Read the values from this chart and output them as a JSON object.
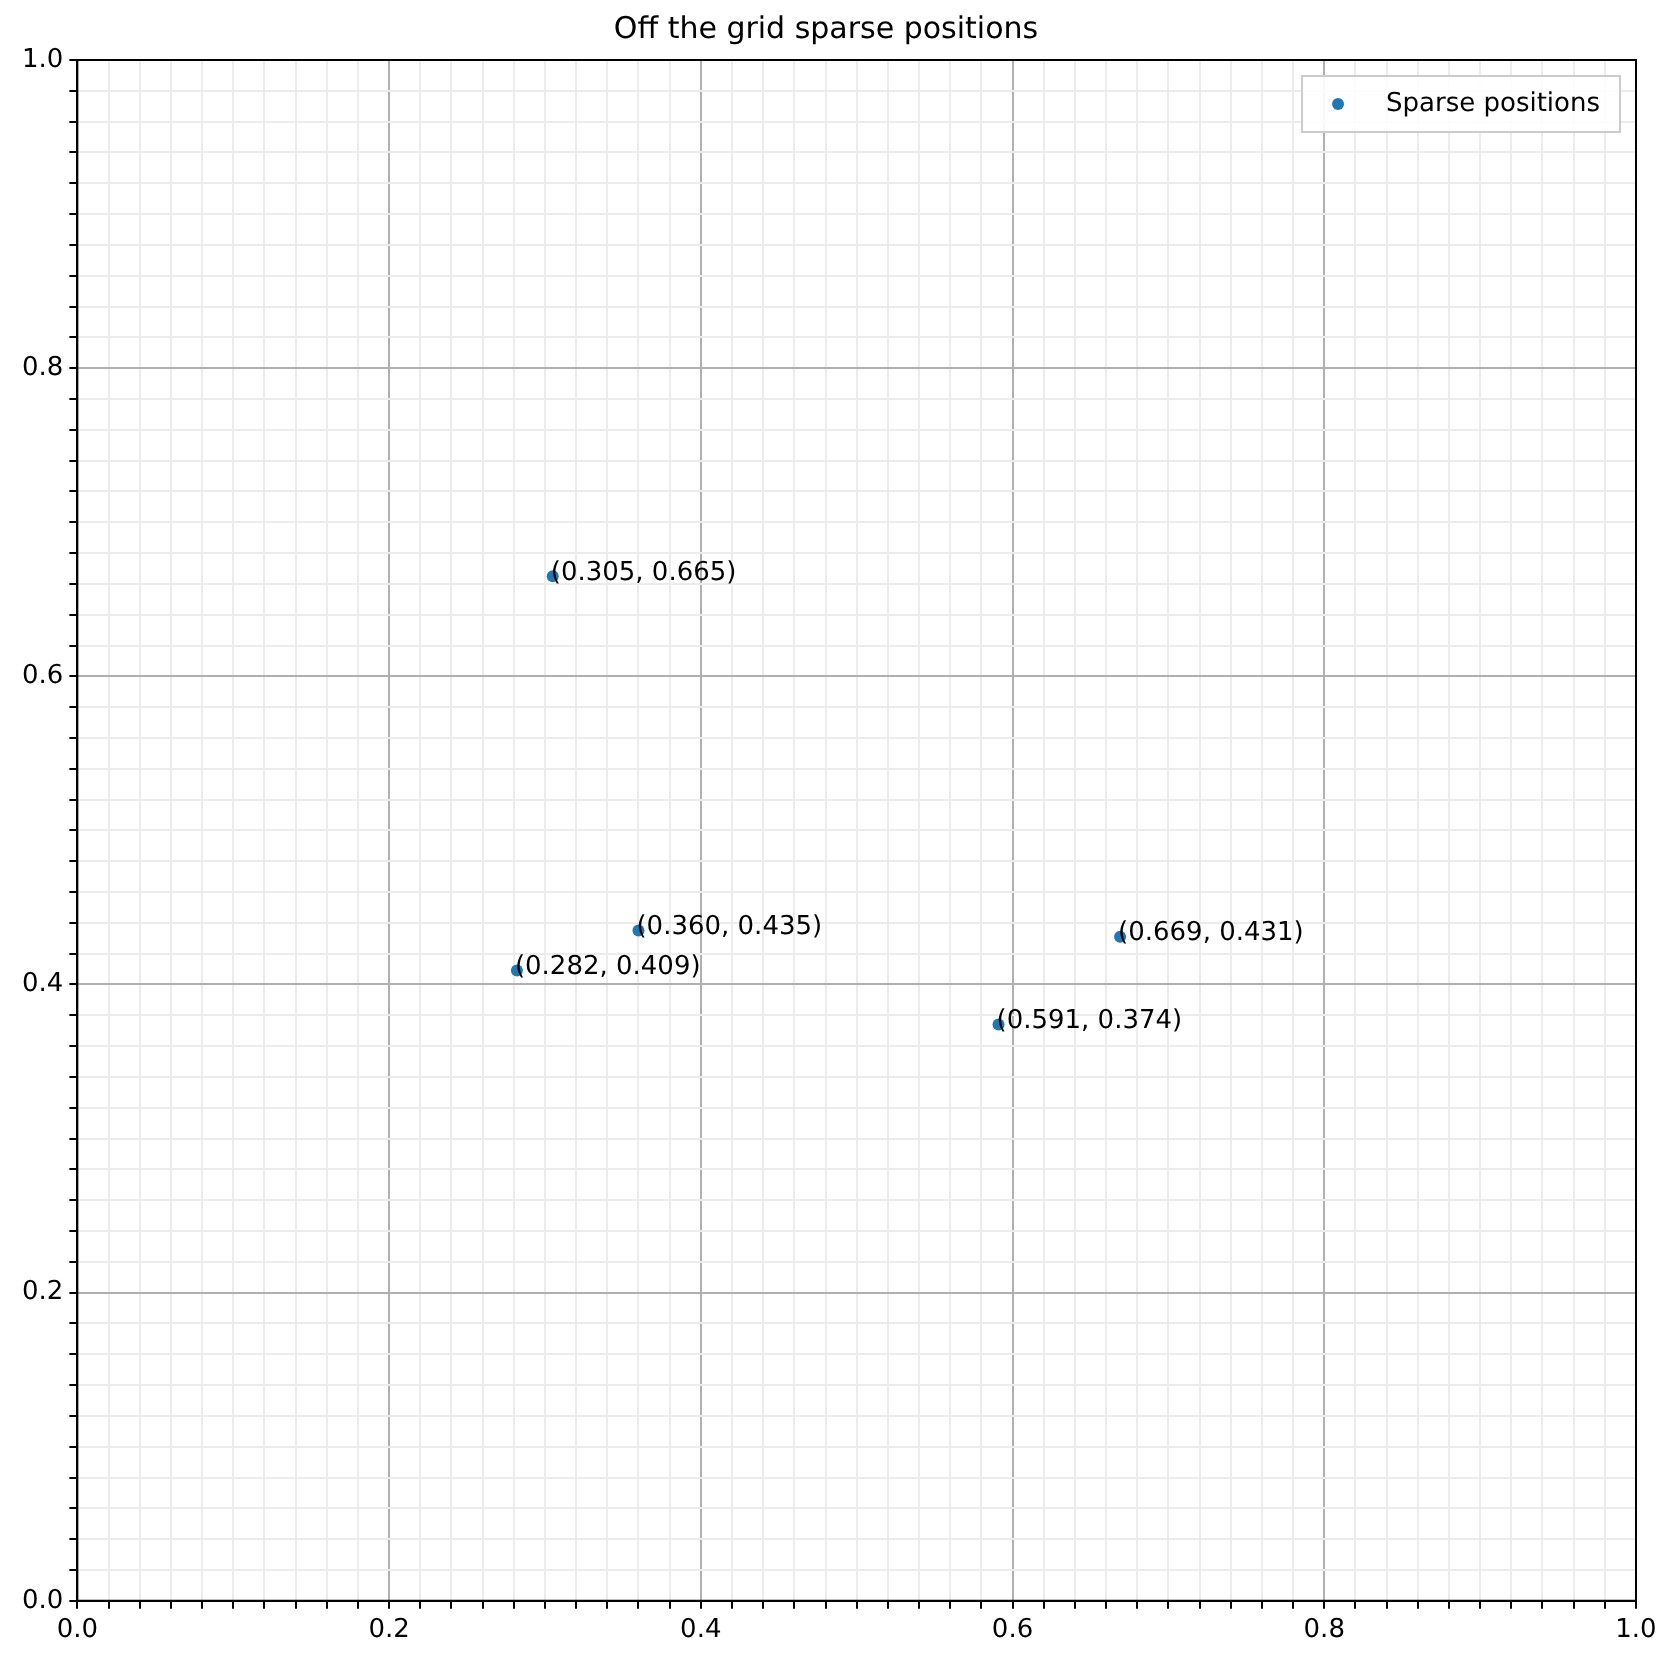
{
  "chart_data": {
    "type": "scatter",
    "title": "Off the grid sparse positions",
    "x": [
      0.305,
      0.36,
      0.282,
      0.669,
      0.591
    ],
    "series": [
      {
        "name": "Sparse positions",
        "color": "#1f77b4",
        "values": [
          0.665,
          0.435,
          0.409,
          0.431,
          0.374
        ],
        "value_labels": [
          "(0.305, 0.665)",
          "(0.360, 0.435)",
          "(0.282, 0.409)",
          "(0.669, 0.431)",
          "(0.591, 0.374)"
        ]
      }
    ],
    "xlim": [
      0,
      1
    ],
    "ylim": [
      0,
      1
    ],
    "xticks": [
      {
        "value": 0,
        "label": "0.0"
      },
      {
        "value": 0.02,
        "label": null
      },
      {
        "value": 0.04,
        "label": null
      },
      {
        "value": 0.06,
        "label": null
      },
      {
        "value": 0.08,
        "label": null
      },
      {
        "value": 0.1,
        "label": null
      },
      {
        "value": 0.12,
        "label": null
      },
      {
        "value": 0.14,
        "label": null
      },
      {
        "value": 0.16,
        "label": null
      },
      {
        "value": 0.18,
        "label": null
      },
      {
        "value": 0.2,
        "label": "0.2"
      },
      {
        "value": 0.22,
        "label": null
      },
      {
        "value": 0.24,
        "label": null
      },
      {
        "value": 0.26,
        "label": null
      },
      {
        "value": 0.28,
        "label": null
      },
      {
        "value": 0.3,
        "label": null
      },
      {
        "value": 0.32,
        "label": null
      },
      {
        "value": 0.34,
        "label": null
      },
      {
        "value": 0.36,
        "label": null
      },
      {
        "value": 0.38,
        "label": null
      },
      {
        "value": 0.4,
        "label": "0.4"
      },
      {
        "value": 0.42,
        "label": null
      },
      {
        "value": 0.44,
        "label": null
      },
      {
        "value": 0.46,
        "label": null
      },
      {
        "value": 0.48,
        "label": null
      },
      {
        "value": 0.5,
        "label": null
      },
      {
        "value": 0.52,
        "label": null
      },
      {
        "value": 0.54,
        "label": null
      },
      {
        "value": 0.56,
        "label": null
      },
      {
        "value": 0.58,
        "label": null
      },
      {
        "value": 0.6,
        "label": "0.6"
      },
      {
        "value": 0.62,
        "label": null
      },
      {
        "value": 0.64,
        "label": null
      },
      {
        "value": 0.66,
        "label": null
      },
      {
        "value": 0.68,
        "label": null
      },
      {
        "value": 0.7,
        "label": null
      },
      {
        "value": 0.72,
        "label": null
      },
      {
        "value": 0.74,
        "label": null
      },
      {
        "value": 0.76,
        "label": null
      },
      {
        "value": 0.78,
        "label": null
      },
      {
        "value": 0.8,
        "label": "0.8"
      },
      {
        "value": 0.82,
        "label": null
      },
      {
        "value": 0.84,
        "label": null
      },
      {
        "value": 0.86,
        "label": null
      },
      {
        "value": 0.88,
        "label": null
      },
      {
        "value": 0.9,
        "label": null
      },
      {
        "value": 0.92,
        "label": null
      },
      {
        "value": 0.94,
        "label": null
      },
      {
        "value": 0.96,
        "label": null
      },
      {
        "value": 0.98,
        "label": null
      },
      {
        "value": 1,
        "label": "1.0"
      }
    ],
    "yticks": [
      {
        "value": 0,
        "label": "0.0"
      },
      {
        "value": 0.02,
        "label": null
      },
      {
        "value": 0.04,
        "label": null
      },
      {
        "value": 0.06,
        "label": null
      },
      {
        "value": 0.08,
        "label": null
      },
      {
        "value": 0.1,
        "label": null
      },
      {
        "value": 0.12,
        "label": null
      },
      {
        "value": 0.14,
        "label": null
      },
      {
        "value": 0.16,
        "label": null
      },
      {
        "value": 0.18,
        "label": null
      },
      {
        "value": 0.2,
        "label": "0.2"
      },
      {
        "value": 0.22,
        "label": null
      },
      {
        "value": 0.24,
        "label": null
      },
      {
        "value": 0.26,
        "label": null
      },
      {
        "value": 0.28,
        "label": null
      },
      {
        "value": 0.3,
        "label": null
      },
      {
        "value": 0.32,
        "label": null
      },
      {
        "value": 0.34,
        "label": null
      },
      {
        "value": 0.36,
        "label": null
      },
      {
        "value": 0.38,
        "label": null
      },
      {
        "value": 0.4,
        "label": "0.4"
      },
      {
        "value": 0.42,
        "label": null
      },
      {
        "value": 0.44,
        "label": null
      },
      {
        "value": 0.46,
        "label": null
      },
      {
        "value": 0.48,
        "label": null
      },
      {
        "value": 0.5,
        "label": null
      },
      {
        "value": 0.52,
        "label": null
      },
      {
        "value": 0.54,
        "label": null
      },
      {
        "value": 0.56,
        "label": null
      },
      {
        "value": 0.58,
        "label": null
      },
      {
        "value": 0.6,
        "label": "0.6"
      },
      {
        "value": 0.62,
        "label": null
      },
      {
        "value": 0.64,
        "label": null
      },
      {
        "value": 0.66,
        "label": null
      },
      {
        "value": 0.68,
        "label": null
      },
      {
        "value": 0.7,
        "label": null
      },
      {
        "value": 0.72,
        "label": null
      },
      {
        "value": 0.74,
        "label": null
      },
      {
        "value": 0.76,
        "label": null
      },
      {
        "value": 0.78,
        "label": null
      },
      {
        "value": 0.8,
        "label": "0.8"
      },
      {
        "value": 0.82,
        "label": null
      },
      {
        "value": 0.84,
        "label": null
      },
      {
        "value": 0.86,
        "label": null
      },
      {
        "value": 0.88,
        "label": null
      },
      {
        "value": 0.9,
        "label": null
      },
      {
        "value": 0.92,
        "label": null
      },
      {
        "value": 0.94,
        "label": null
      },
      {
        "value": 0.96,
        "label": null
      },
      {
        "value": 0.98,
        "label": null
      },
      {
        "value": 1,
        "label": "1.0"
      }
    ],
    "grid": true,
    "legend": "top right",
    "marker": "circle"
  }
}
